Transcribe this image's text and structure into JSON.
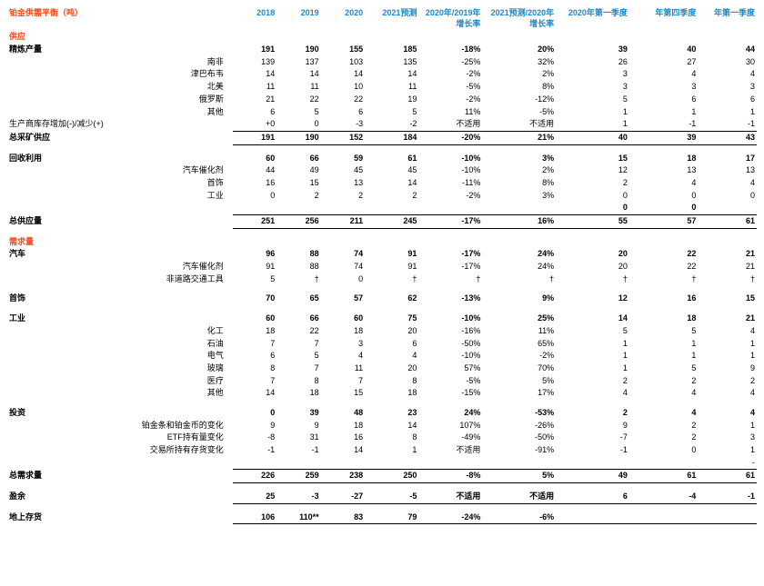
{
  "title": "铂金供需平衡（吨）",
  "headers": {
    "y2018": "2018",
    "y2019": "2019",
    "y2020": "2020",
    "y2021f": "2021预测",
    "g2020_2019": "2020年/2019年增长率",
    "g2021_2020": "2021预测/2020年增长率",
    "q1_2020": "2020年第一季度",
    "q4_2020": "年第四季度",
    "q1_2021": "年第一季度"
  },
  "sections": {
    "supply": "供应",
    "demand": "需求量"
  },
  "rows": {
    "refined_prod": {
      "label": "精炼产量",
      "b": true,
      "v": [
        "191",
        "190",
        "155",
        "185",
        "-18%",
        "20%",
        "39",
        "40",
        "44"
      ]
    },
    "south_africa": {
      "label": "南非",
      "v": [
        "139",
        "137",
        "103",
        "135",
        "-25%",
        "32%",
        "26",
        "27",
        "30"
      ]
    },
    "zimbabwe": {
      "label": "津巴布韦",
      "v": [
        "14",
        "14",
        "14",
        "14",
        "-2%",
        "2%",
        "3",
        "4",
        "4"
      ]
    },
    "north_america": {
      "label": "北美",
      "v": [
        "11",
        "11",
        "10",
        "11",
        "-5%",
        "8%",
        "3",
        "3",
        "3"
      ]
    },
    "russia": {
      "label": "俄罗斯",
      "v": [
        "21",
        "22",
        "22",
        "19",
        "-2%",
        "-12%",
        "5",
        "6",
        "6"
      ]
    },
    "other_mine": {
      "label": "其他",
      "v": [
        "6",
        "5",
        "6",
        "5",
        "11%",
        "-5%",
        "1",
        "1",
        "1"
      ]
    },
    "producer_inv": {
      "label": "生产商库存增加(-)/减少(+)",
      "lb": true,
      "v": [
        "+0",
        "0",
        "-3",
        "-2",
        "不适用",
        "不适用",
        "1",
        "-1",
        "-1"
      ]
    },
    "total_mine": {
      "label": "总采矿供应",
      "b": true,
      "bt": true,
      "bb": true,
      "v": [
        "191",
        "190",
        "152",
        "184",
        "-20%",
        "21%",
        "40",
        "39",
        "43"
      ]
    },
    "recycling": {
      "label": "回收利用",
      "b": true,
      "v": [
        "60",
        "66",
        "59",
        "61",
        "-10%",
        "3%",
        "15",
        "18",
        "17"
      ]
    },
    "autocat_r": {
      "label": "汽车催化剂",
      "v": [
        "44",
        "49",
        "45",
        "45",
        "-10%",
        "2%",
        "12",
        "13",
        "13"
      ]
    },
    "jewel_r": {
      "label": "首饰",
      "v": [
        "16",
        "15",
        "13",
        "14",
        "-11%",
        "8%",
        "2",
        "4",
        "4"
      ]
    },
    "ind_r": {
      "label": "工业",
      "v": [
        "0",
        "2",
        "2",
        "2",
        "-2%",
        "3%",
        "0",
        "0",
        "0"
      ]
    },
    "blank_r": {
      "label": "",
      "b": true,
      "bb": true,
      "v": [
        "",
        "",
        "",
        "",
        "",
        "",
        "0",
        "0",
        ""
      ]
    },
    "total_supply": {
      "label": "总供应量",
      "b": true,
      "bb": true,
      "v": [
        "251",
        "256",
        "211",
        "245",
        "-17%",
        "16%",
        "55",
        "57",
        "61"
      ]
    },
    "auto": {
      "label": "汽车",
      "b": true,
      "v": [
        "96",
        "88",
        "74",
        "91",
        "-17%",
        "24%",
        "20",
        "22",
        "21"
      ]
    },
    "autocat_d": {
      "label": "汽车催化剂",
      "v": [
        "91",
        "88",
        "74",
        "91",
        "-17%",
        "24%",
        "20",
        "22",
        "21"
      ]
    },
    "nonroad": {
      "label": "非道路交通工具",
      "v": [
        "5",
        "†",
        "0",
        "†",
        "†",
        "†",
        "†",
        "†",
        "†"
      ]
    },
    "jewel_d": {
      "label": "首饰",
      "b": true,
      "v": [
        "70",
        "65",
        "57",
        "62",
        "-13%",
        "9%",
        "12",
        "16",
        "15"
      ]
    },
    "industrial": {
      "label": "工业",
      "b": true,
      "v": [
        "60",
        "66",
        "60",
        "75",
        "-10%",
        "25%",
        "14",
        "18",
        "21"
      ]
    },
    "chemical": {
      "label": "化工",
      "v": [
        "18",
        "22",
        "18",
        "20",
        "-16%",
        "11%",
        "5",
        "5",
        "4"
      ]
    },
    "petroleum": {
      "label": "石油",
      "v": [
        "7",
        "7",
        "3",
        "6",
        "-50%",
        "65%",
        "1",
        "1",
        "1"
      ]
    },
    "electrical": {
      "label": "电气",
      "v": [
        "6",
        "5",
        "4",
        "4",
        "-10%",
        "-2%",
        "1",
        "1",
        "1"
      ]
    },
    "glass": {
      "label": "玻璃",
      "v": [
        "8",
        "7",
        "11",
        "20",
        "57%",
        "70%",
        "1",
        "5",
        "9"
      ]
    },
    "medical": {
      "label": "医疗",
      "v": [
        "7",
        "8",
        "7",
        "8",
        "-5%",
        "5%",
        "2",
        "2",
        "2"
      ]
    },
    "other_ind": {
      "label": "其他",
      "v": [
        "14",
        "18",
        "15",
        "18",
        "-15%",
        "17%",
        "4",
        "4",
        "4"
      ]
    },
    "investment": {
      "label": "投资",
      "b": true,
      "v": [
        "0",
        "39",
        "48",
        "23",
        "24%",
        "-53%",
        "2",
        "4",
        "4"
      ]
    },
    "bar_coin": {
      "label": "铂金条和铂金币的变化",
      "v": [
        "9",
        "9",
        "18",
        "14",
        "107%",
        "-26%",
        "9",
        "2",
        "1"
      ]
    },
    "etf": {
      "label": "ETF持有量变化",
      "v": [
        "-8",
        "31",
        "16",
        "8",
        "-49%",
        "-50%",
        "-7",
        "2",
        "3"
      ]
    },
    "exchange": {
      "label": "交易所持有存货变化",
      "v": [
        "-1",
        "-1",
        "14",
        "1",
        "不适用",
        "-91%",
        "-1",
        "0",
        "1"
      ]
    },
    "neg": {
      "label": "",
      "v": [
        "",
        "",
        "",
        "",
        "",
        "",
        "",
        "",
        "-"
      ]
    },
    "total_demand": {
      "label": "总需求量",
      "b": true,
      "bt": true,
      "bb": true,
      "v": [
        "226",
        "259",
        "238",
        "250",
        "-8%",
        "5%",
        "49",
        "61",
        "61"
      ]
    },
    "surplus": {
      "label": "盈余",
      "b": true,
      "bb": true,
      "v": [
        "25",
        "-3",
        "-27",
        "-5",
        "不适用",
        "不适用",
        "6",
        "-4",
        "-1"
      ]
    },
    "above_ground": {
      "label": "地上存货",
      "b": true,
      "bb": true,
      "v": [
        "106",
        "110**",
        "83",
        "79",
        "-24%",
        "-6%",
        "",
        "",
        ""
      ]
    }
  },
  "order": [
    {
      "type": "section",
      "key": "supply"
    },
    {
      "type": "row",
      "key": "refined_prod"
    },
    {
      "type": "sub",
      "key": "south_africa"
    },
    {
      "type": "sub",
      "key": "zimbabwe"
    },
    {
      "type": "sub",
      "key": "north_america"
    },
    {
      "type": "sub",
      "key": "russia"
    },
    {
      "type": "sub",
      "key": "other_mine"
    },
    {
      "type": "row",
      "key": "producer_inv"
    },
    {
      "type": "row",
      "key": "total_mine"
    },
    {
      "type": "spacer"
    },
    {
      "type": "row",
      "key": "recycling"
    },
    {
      "type": "sub",
      "key": "autocat_r"
    },
    {
      "type": "sub",
      "key": "jewel_r"
    },
    {
      "type": "sub",
      "key": "ind_r"
    },
    {
      "type": "row",
      "key": "blank_r"
    },
    {
      "type": "row",
      "key": "total_supply"
    },
    {
      "type": "spacer"
    },
    {
      "type": "section",
      "key": "demand"
    },
    {
      "type": "row",
      "key": "auto"
    },
    {
      "type": "sub",
      "key": "autocat_d"
    },
    {
      "type": "sub",
      "key": "nonroad"
    },
    {
      "type": "spacer"
    },
    {
      "type": "row",
      "key": "jewel_d"
    },
    {
      "type": "spacer"
    },
    {
      "type": "row",
      "key": "industrial"
    },
    {
      "type": "sub",
      "key": "chemical"
    },
    {
      "type": "sub",
      "key": "petroleum"
    },
    {
      "type": "sub",
      "key": "electrical"
    },
    {
      "type": "sub",
      "key": "glass"
    },
    {
      "type": "sub",
      "key": "medical"
    },
    {
      "type": "sub",
      "key": "other_ind"
    },
    {
      "type": "spacer"
    },
    {
      "type": "row",
      "key": "investment"
    },
    {
      "type": "sub",
      "key": "bar_coin"
    },
    {
      "type": "sub",
      "key": "etf"
    },
    {
      "type": "sub",
      "key": "exchange"
    },
    {
      "type": "row",
      "key": "neg"
    },
    {
      "type": "row",
      "key": "total_demand"
    },
    {
      "type": "spacer"
    },
    {
      "type": "row",
      "key": "surplus"
    },
    {
      "type": "spacer"
    },
    {
      "type": "row",
      "key": "above_ground"
    }
  ]
}
